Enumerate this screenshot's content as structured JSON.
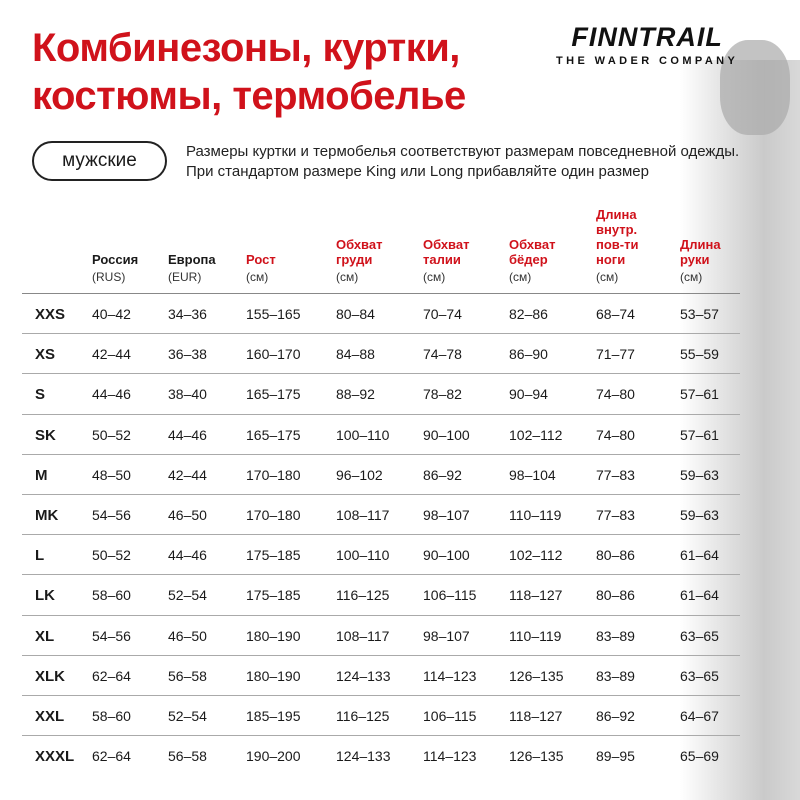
{
  "title_line1": "Комбинезоны, куртки,",
  "title_line2": "костюмы, термобелье",
  "logo": {
    "brand": "FINNTRAIL",
    "tagline": "THE WADER COMPANY"
  },
  "category_badge": "мужские",
  "note": "Размеры куртки и термобелья соответствуют размерам повседневной одежды. При стандартом размере King или Long прибавляйте один размер",
  "accent_color": "#d0121b",
  "columns": [
    {
      "title": "",
      "unit": ""
    },
    {
      "title": "Россия",
      "unit": "(RUS)",
      "red": false
    },
    {
      "title": "Европа",
      "unit": "(EUR)",
      "red": false
    },
    {
      "title": "Рост",
      "unit": "(см)",
      "red": true
    },
    {
      "title": "Обхват груди",
      "unit": "(см)",
      "red": true
    },
    {
      "title": "Обхват талии",
      "unit": "(см)",
      "red": true
    },
    {
      "title": "Обхват бёдер",
      "unit": "(см)",
      "red": true
    },
    {
      "title": "Длина внутр. пов-ти ноги",
      "unit": "(см)",
      "red": true
    },
    {
      "title": "Длина руки",
      "unit": "(см)",
      "red": true
    }
  ],
  "rows": [
    [
      "XXS",
      "40–42",
      "34–36",
      "155–165",
      "80–84",
      "70–74",
      "82–86",
      "68–74",
      "53–57"
    ],
    [
      "XS",
      "42–44",
      "36–38",
      "160–170",
      "84–88",
      "74–78",
      "86–90",
      "71–77",
      "55–59"
    ],
    [
      "S",
      "44–46",
      "38–40",
      "165–175",
      "88–92",
      "78–82",
      "90–94",
      "74–80",
      "57–61"
    ],
    [
      "SK",
      "50–52",
      "44–46",
      "165–175",
      "100–110",
      "90–100",
      "102–112",
      "74–80",
      "57–61"
    ],
    [
      "M",
      "48–50",
      "42–44",
      "170–180",
      "96–102",
      "86–92",
      "98–104",
      "77–83",
      "59–63"
    ],
    [
      "MK",
      "54–56",
      "46–50",
      "170–180",
      "108–117",
      "98–107",
      "110–119",
      "77–83",
      "59–63"
    ],
    [
      "L",
      "50–52",
      "44–46",
      "175–185",
      "100–110",
      "90–100",
      "102–112",
      "80–86",
      "61–64"
    ],
    [
      "LK",
      "58–60",
      "52–54",
      "175–185",
      "116–125",
      "106–115",
      "118–127",
      "80–86",
      "61–64"
    ],
    [
      "XL",
      "54–56",
      "46–50",
      "180–190",
      "108–117",
      "98–107",
      "110–119",
      "83–89",
      "63–65"
    ],
    [
      "XLK",
      "62–64",
      "56–58",
      "180–190",
      "124–133",
      "114–123",
      "126–135",
      "83–89",
      "63–65"
    ],
    [
      "XXL",
      "58–60",
      "52–54",
      "185–195",
      "116–125",
      "106–115",
      "118–127",
      "86–92",
      "64–67"
    ],
    [
      "XXXL",
      "62–64",
      "56–58",
      "190–200",
      "124–133",
      "114–123",
      "126–135",
      "89–95",
      "65–69"
    ]
  ]
}
